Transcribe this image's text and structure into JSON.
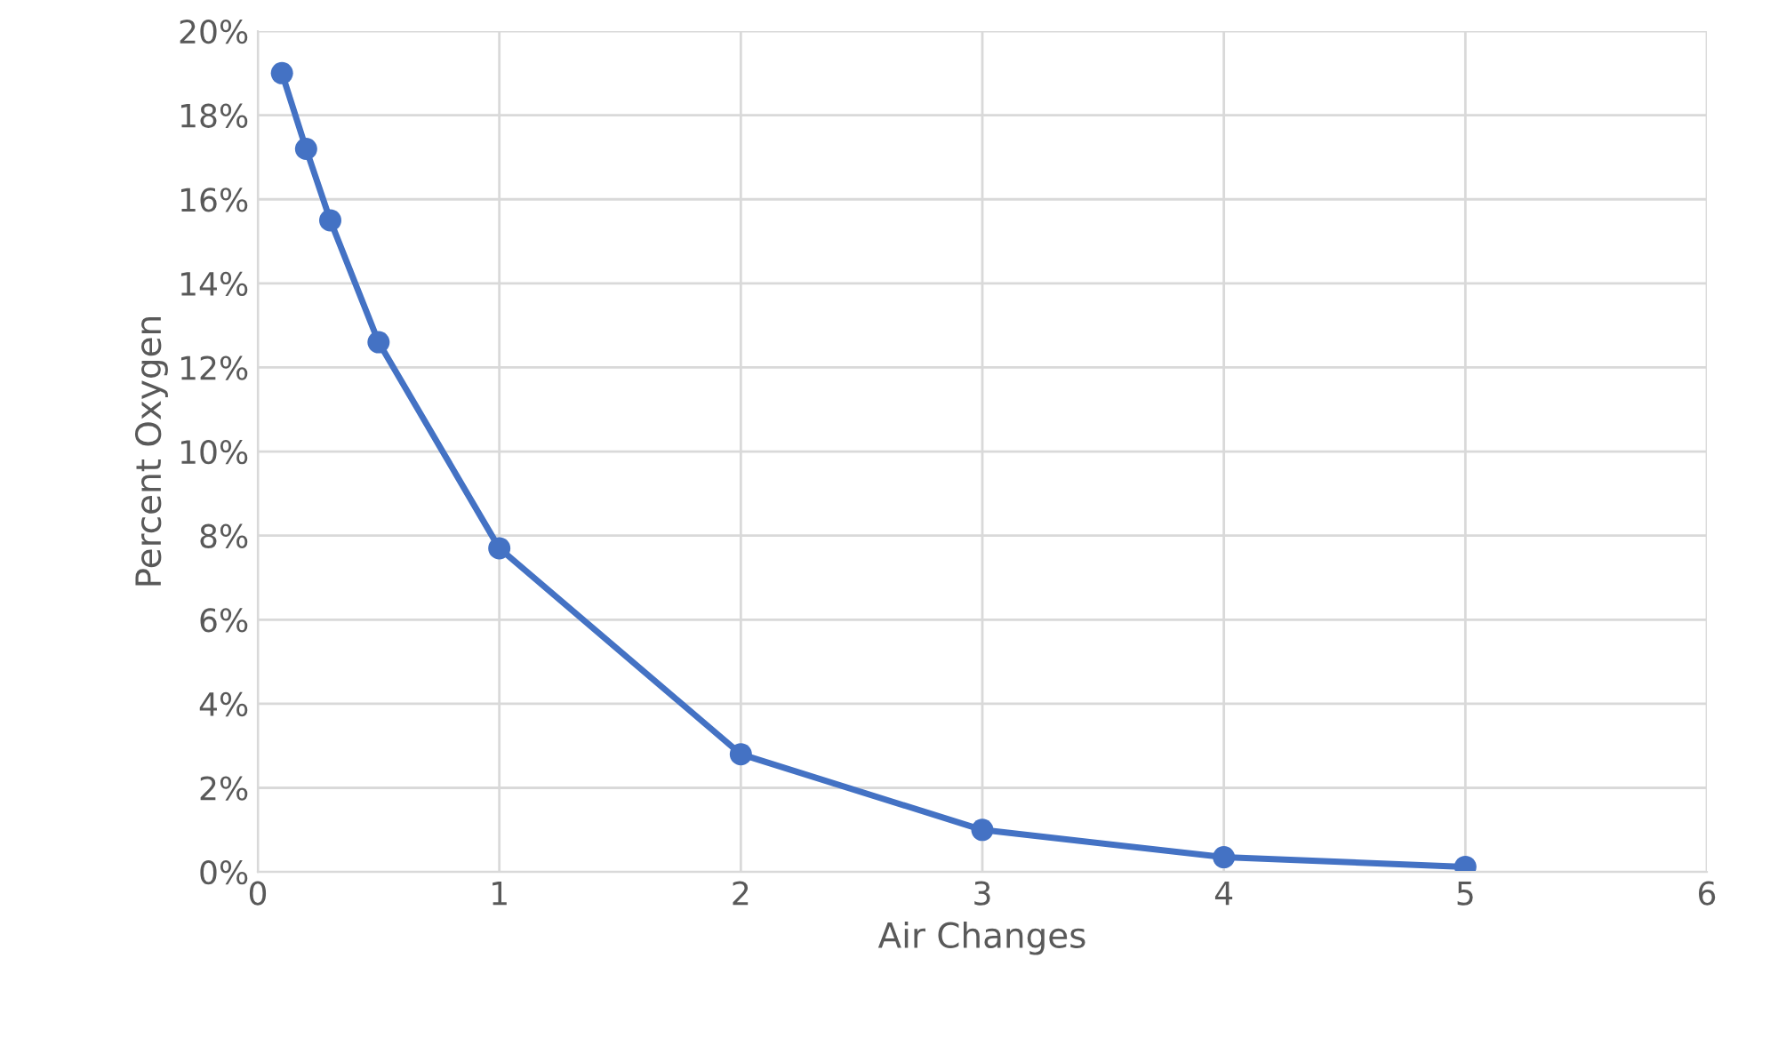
{
  "chart_data": {
    "type": "line",
    "xlabel": "Air Changes",
    "ylabel": "Percent Oxygen",
    "x": [
      0.1,
      0.2,
      0.3,
      0.5,
      1,
      2,
      3,
      4,
      5
    ],
    "values": [
      19.0,
      17.2,
      15.5,
      12.6,
      7.7,
      2.8,
      1.0,
      0.35,
      0.12
    ],
    "color": "#4472c4",
    "marker": "circle",
    "line_style": "solid",
    "xlim": [
      0,
      6
    ],
    "xticks": [
      0,
      1,
      2,
      3,
      4,
      5,
      6
    ],
    "ylim": [
      0,
      20
    ],
    "yticks": [
      {
        "value": 0,
        "label": "0%"
      },
      {
        "value": 2,
        "label": "2%"
      },
      {
        "value": 4,
        "label": "4%"
      },
      {
        "value": 6,
        "label": "6%"
      },
      {
        "value": 8,
        "label": "8%"
      },
      {
        "value": 10,
        "label": "10%"
      },
      {
        "value": 12,
        "label": "12%"
      },
      {
        "value": 14,
        "label": "14%"
      },
      {
        "value": 16,
        "label": "16%"
      },
      {
        "value": 18,
        "label": "18%"
      },
      {
        "value": 20,
        "label": "20%"
      }
    ],
    "grid": true
  }
}
